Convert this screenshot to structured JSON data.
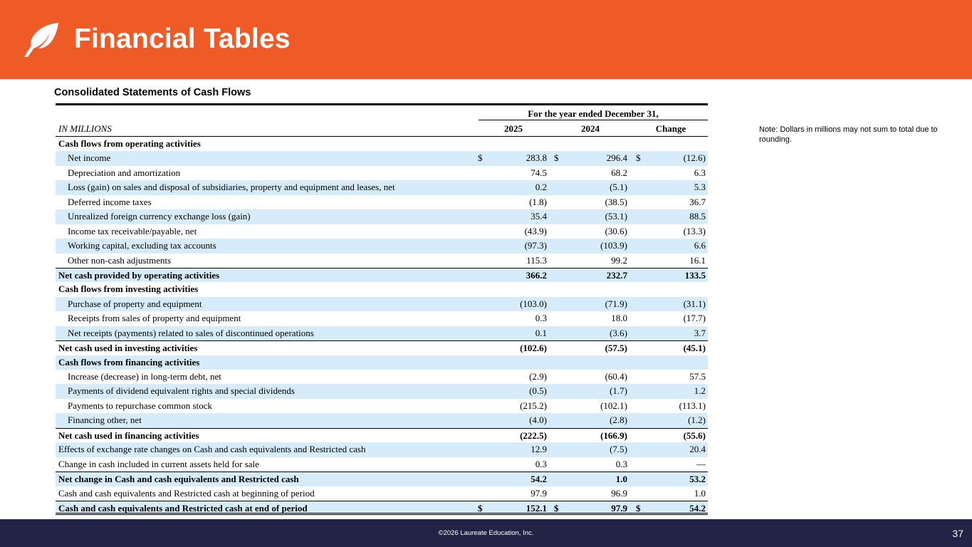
{
  "header": {
    "title": "Financial Tables",
    "logo_icon": "leaf-icon",
    "background": "#ef5b26"
  },
  "section_title": "Consolidated Statements of Cash Flows",
  "note": "Note:  Dollars in millions may not sum to total due to rounding.",
  "table": {
    "period_label": "For the year ended December 31,",
    "units_label": "IN MILLIONS",
    "columns": [
      "2025",
      "2024",
      "Change"
    ],
    "shade_color": "#d6ecfa",
    "rows": [
      {
        "label": "Cash flows from operating activities",
        "type": "section",
        "shaded": false
      },
      {
        "label": "Net income",
        "type": "sub",
        "shaded": true,
        "currency": true,
        "values": [
          "283.8",
          "296.4",
          "(12.6)"
        ]
      },
      {
        "label": "Depreciation and amortization",
        "type": "sub",
        "shaded": false,
        "values": [
          "74.5",
          "68.2",
          "6.3"
        ]
      },
      {
        "label": "Loss (gain) on sales and disposal of subsidiaries, property and equipment and leases, net",
        "type": "sub",
        "shaded": true,
        "values": [
          "0.2",
          "(5.1)",
          "5.3"
        ]
      },
      {
        "label": "Deferred income taxes",
        "type": "sub",
        "shaded": false,
        "values": [
          "(1.8)",
          "(38.5)",
          "36.7"
        ]
      },
      {
        "label": "Unrealized foreign currency exchange loss (gain)",
        "type": "sub",
        "shaded": true,
        "values": [
          "35.4",
          "(53.1)",
          "88.5"
        ]
      },
      {
        "label": "Income tax receivable/payable, net",
        "type": "sub",
        "shaded": false,
        "values": [
          "(43.9)",
          "(30.6)",
          "(13.3)"
        ]
      },
      {
        "label": "Working capital, excluding tax accounts",
        "type": "sub",
        "shaded": true,
        "values": [
          "(97.3)",
          "(103.9)",
          "6.6"
        ]
      },
      {
        "label": "Other non-cash adjustments",
        "type": "sub",
        "shaded": false,
        "values": [
          "115.3",
          "99.2",
          "16.1"
        ]
      },
      {
        "label": "Net cash provided by operating activities",
        "type": "total",
        "shaded": true,
        "values": [
          "366.2",
          "232.7",
          "133.5"
        ]
      },
      {
        "label": "Cash flows from investing activities",
        "type": "section",
        "shaded": false
      },
      {
        "label": "Purchase of property and equipment",
        "type": "sub",
        "shaded": true,
        "values": [
          "(103.0)",
          "(71.9)",
          "(31.1)"
        ]
      },
      {
        "label": "Receipts from sales of property and equipment",
        "type": "sub",
        "shaded": false,
        "values": [
          "0.3",
          "18.0",
          "(17.7)"
        ]
      },
      {
        "label": "Net receipts (payments) related to sales of discontinued operations",
        "type": "sub",
        "shaded": true,
        "values": [
          "0.1",
          "(3.6)",
          "3.7"
        ]
      },
      {
        "label": "Net cash used in investing activities",
        "type": "total",
        "shaded": false,
        "values": [
          "(102.6)",
          "(57.5)",
          "(45.1)"
        ]
      },
      {
        "label": "Cash flows from financing activities",
        "type": "section",
        "shaded": true
      },
      {
        "label": "Increase (decrease) in long-term debt, net",
        "type": "sub",
        "shaded": false,
        "values": [
          "(2.9)",
          "(60.4)",
          "57.5"
        ]
      },
      {
        "label": "Payments of dividend equivalent rights and special dividends",
        "type": "sub",
        "shaded": true,
        "values": [
          "(0.5)",
          "(1.7)",
          "1.2"
        ]
      },
      {
        "label": "Payments to repurchase common stock",
        "type": "sub",
        "shaded": false,
        "values": [
          "(215.2)",
          "(102.1)",
          "(113.1)"
        ]
      },
      {
        "label": "Financing other, net",
        "type": "sub",
        "shaded": true,
        "values": [
          "(4.0)",
          "(2.8)",
          "(1.2)"
        ]
      },
      {
        "label": "Net cash used in financing activities",
        "type": "total",
        "shaded": false,
        "values": [
          "(222.5)",
          "(166.9)",
          "(55.6)"
        ]
      },
      {
        "label": "Effects of exchange rate changes on Cash and cash equivalents and Restricted cash",
        "type": "plain",
        "shaded": true,
        "values": [
          "12.9",
          "(7.5)",
          "20.4"
        ]
      },
      {
        "label": "Change in cash included in current assets held for sale",
        "type": "plain",
        "shaded": false,
        "values": [
          "0.3",
          "0.3",
          "—"
        ]
      },
      {
        "label": "Net change in Cash and cash equivalents and Restricted cash",
        "type": "total",
        "shaded": true,
        "values": [
          "54.2",
          "1.0",
          "53.2"
        ]
      },
      {
        "label": "Cash and cash equivalents and Restricted cash at beginning of period",
        "type": "plain",
        "shaded": false,
        "values": [
          "97.9",
          "96.9",
          "1.0"
        ]
      },
      {
        "label": "Cash and cash equivalents and Restricted cash at end of period",
        "type": "grand",
        "shaded": true,
        "currency": true,
        "values": [
          "152.1",
          "97.9",
          "54.2"
        ]
      }
    ]
  },
  "footer": {
    "copyright": "©2026 Laureate Education, Inc.",
    "page_number": "37",
    "background": "#212244"
  }
}
